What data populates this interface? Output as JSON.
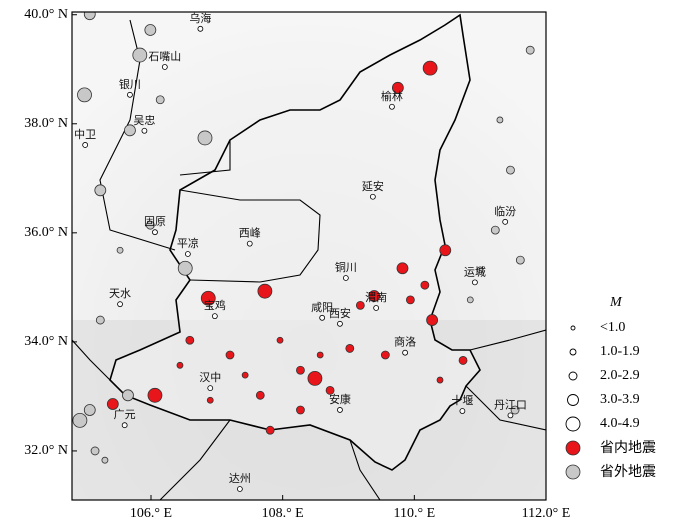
{
  "map": {
    "xlim": [
      104.8,
      112
    ],
    "ylim": [
      31.1,
      40.05
    ],
    "xticks": [
      {
        "value": 106,
        "label": "106.° E"
      },
      {
        "value": 108,
        "label": "108.° E"
      },
      {
        "value": 110,
        "label": "110.° E"
      },
      {
        "value": 112,
        "label": "112.0° E"
      }
    ],
    "yticks": [
      {
        "value": 40,
        "label": "40.0° N"
      },
      {
        "value": 38,
        "label": "38.0° N"
      },
      {
        "value": 36,
        "label": "36.0° N"
      },
      {
        "value": 34,
        "label": "34.0° N"
      },
      {
        "value": 32,
        "label": "32.0° N"
      }
    ],
    "cities": [
      {
        "name": "榆林",
        "lon": 109.66,
        "lat": 38.44
      },
      {
        "name": "延安",
        "lon": 109.37,
        "lat": 36.79
      },
      {
        "name": "西峰",
        "lon": 107.5,
        "lat": 35.93
      },
      {
        "name": "铜川",
        "lon": 108.96,
        "lat": 35.3
      },
      {
        "name": "渭南",
        "lon": 109.42,
        "lat": 34.75
      },
      {
        "name": "咸阳",
        "lon": 108.6,
        "lat": 34.57
      },
      {
        "name": "西安",
        "lon": 108.87,
        "lat": 34.46
      },
      {
        "name": "宝鸡",
        "lon": 106.97,
        "lat": 34.6
      },
      {
        "name": "商洛",
        "lon": 109.86,
        "lat": 33.93
      },
      {
        "name": "汉中",
        "lon": 106.9,
        "lat": 33.28
      },
      {
        "name": "安康",
        "lon": 108.87,
        "lat": 32.88
      },
      {
        "name": "十堰",
        "lon": 110.73,
        "lat": 32.86
      },
      {
        "name": "丹江口",
        "lon": 111.46,
        "lat": 32.78
      },
      {
        "name": "广元",
        "lon": 105.6,
        "lat": 32.6
      },
      {
        "name": "达州",
        "lon": 107.35,
        "lat": 31.43
      },
      {
        "name": "天水",
        "lon": 105.53,
        "lat": 34.82
      },
      {
        "name": "平凉",
        "lon": 106.56,
        "lat": 35.74
      },
      {
        "name": "固原",
        "lon": 106.06,
        "lat": 36.14
      },
      {
        "name": "中卫",
        "lon": 105.0,
        "lat": 37.74
      },
      {
        "name": "银川",
        "lon": 105.68,
        "lat": 38.66
      },
      {
        "name": "吴忠",
        "lon": 105.9,
        "lat": 38.0
      },
      {
        "name": "石嘴山",
        "lon": 106.21,
        "lat": 39.17
      },
      {
        "name": "乌海",
        "lon": 106.75,
        "lat": 39.87
      },
      {
        "name": "运城",
        "lon": 110.92,
        "lat": 35.22
      },
      {
        "name": "临汾",
        "lon": 111.38,
        "lat": 36.33
      }
    ],
    "series": [
      {
        "name": "省内地震",
        "color": "#e8161b",
        "events": [
          {
            "lon": 110.24,
            "lat": 39.02,
            "mag": 4.5
          },
          {
            "lon": 109.75,
            "lat": 38.66,
            "mag": 3.5
          },
          {
            "lon": 107.73,
            "lat": 34.93,
            "mag": 4.0
          },
          {
            "lon": 106.87,
            "lat": 34.8,
            "mag": 4.0
          },
          {
            "lon": 108.49,
            "lat": 33.33,
            "mag": 4.0
          },
          {
            "lon": 106.06,
            "lat": 33.02,
            "mag": 4.0
          },
          {
            "lon": 105.42,
            "lat": 32.86,
            "mag": 3.5
          },
          {
            "lon": 109.82,
            "lat": 35.35,
            "mag": 3.2
          },
          {
            "lon": 109.39,
            "lat": 34.84,
            "mag": 3.0
          },
          {
            "lon": 110.47,
            "lat": 35.68,
            "mag": 3.0
          },
          {
            "lon": 110.27,
            "lat": 34.4,
            "mag": 3.0
          },
          {
            "lon": 109.02,
            "lat": 33.88,
            "mag": 2.5
          },
          {
            "lon": 108.27,
            "lat": 33.48,
            "mag": 2.5
          },
          {
            "lon": 107.81,
            "lat": 32.38,
            "mag": 2.5
          },
          {
            "lon": 107.66,
            "lat": 33.02,
            "mag": 2.0
          },
          {
            "lon": 109.56,
            "lat": 33.76,
            "mag": 2.5
          },
          {
            "lon": 110.74,
            "lat": 33.66,
            "mag": 2.5
          },
          {
            "lon": 107.2,
            "lat": 33.76,
            "mag": 2.0
          },
          {
            "lon": 106.59,
            "lat": 34.03,
            "mag": 2.0
          },
          {
            "lon": 108.72,
            "lat": 33.11,
            "mag": 2.0
          },
          {
            "lon": 109.94,
            "lat": 34.77,
            "mag": 2.5
          },
          {
            "lon": 108.27,
            "lat": 32.75,
            "mag": 2.0
          },
          {
            "lon": 109.18,
            "lat": 34.67,
            "mag": 2.0
          },
          {
            "lon": 110.16,
            "lat": 35.04,
            "mag": 2.0
          },
          {
            "lon": 106.44,
            "lat": 33.57,
            "mag": 1.5
          },
          {
            "lon": 107.96,
            "lat": 34.03,
            "mag": 1.5
          },
          {
            "lon": 107.43,
            "lat": 33.39,
            "mag": 1.5
          },
          {
            "lon": 108.57,
            "lat": 33.76,
            "mag": 1.5
          },
          {
            "lon": 110.39,
            "lat": 33.3,
            "mag": 1.5
          },
          {
            "lon": 106.9,
            "lat": 32.93,
            "mag": 1.5
          }
        ]
      },
      {
        "name": "省外地震",
        "color": "#c8c8c8",
        "events": [
          {
            "lon": 105.07,
            "lat": 40.01,
            "mag": 3.0
          },
          {
            "lon": 104.99,
            "lat": 38.53,
            "mag": 4.0
          },
          {
            "lon": 106.82,
            "lat": 37.74,
            "mag": 4.0
          },
          {
            "lon": 105.83,
            "lat": 39.26,
            "mag": 4.0
          },
          {
            "lon": 106.52,
            "lat": 35.35,
            "mag": 4.0
          },
          {
            "lon": 104.92,
            "lat": 32.56,
            "mag": 4.0
          },
          {
            "lon": 105.65,
            "lat": 33.02,
            "mag": 3.5
          },
          {
            "lon": 105.99,
            "lat": 39.72,
            "mag": 3.0
          },
          {
            "lon": 105.23,
            "lat": 36.78,
            "mag": 3.0
          },
          {
            "lon": 105.68,
            "lat": 37.88,
            "mag": 3.0
          },
          {
            "lon": 111.53,
            "lat": 32.75,
            "mag": 2.5
          },
          {
            "lon": 111.61,
            "lat": 35.5,
            "mag": 2.0
          },
          {
            "lon": 111.23,
            "lat": 36.05,
            "mag": 2.0
          },
          {
            "lon": 111.46,
            "lat": 37.15,
            "mag": 2.0
          },
          {
            "lon": 111.76,
            "lat": 39.35,
            "mag": 2.0
          },
          {
            "lon": 105.99,
            "lat": 36.14,
            "mag": 2.5
          },
          {
            "lon": 106.14,
            "lat": 38.44,
            "mag": 2.0
          },
          {
            "lon": 105.23,
            "lat": 34.4,
            "mag": 2.0
          },
          {
            "lon": 105.15,
            "lat": 32.0,
            "mag": 2.0
          },
          {
            "lon": 111.0,
            "lat": 35.32,
            "mag": 1.5
          },
          {
            "lon": 111.3,
            "lat": 38.07,
            "mag": 1.5
          },
          {
            "lon": 105.53,
            "lat": 35.68,
            "mag": 1.5
          },
          {
            "lon": 110.85,
            "lat": 34.77,
            "mag": 1.5
          },
          {
            "lon": 105.3,
            "lat": 31.83,
            "mag": 1.5
          },
          {
            "lon": 105.07,
            "lat": 32.75,
            "mag": 3.0
          }
        ]
      }
    ],
    "legend": {
      "title": "M",
      "classes": [
        "<1.0",
        "1.0-1.9",
        "2.0-2.9",
        "3.0-3.9",
        "4.0-4.9"
      ]
    }
  }
}
